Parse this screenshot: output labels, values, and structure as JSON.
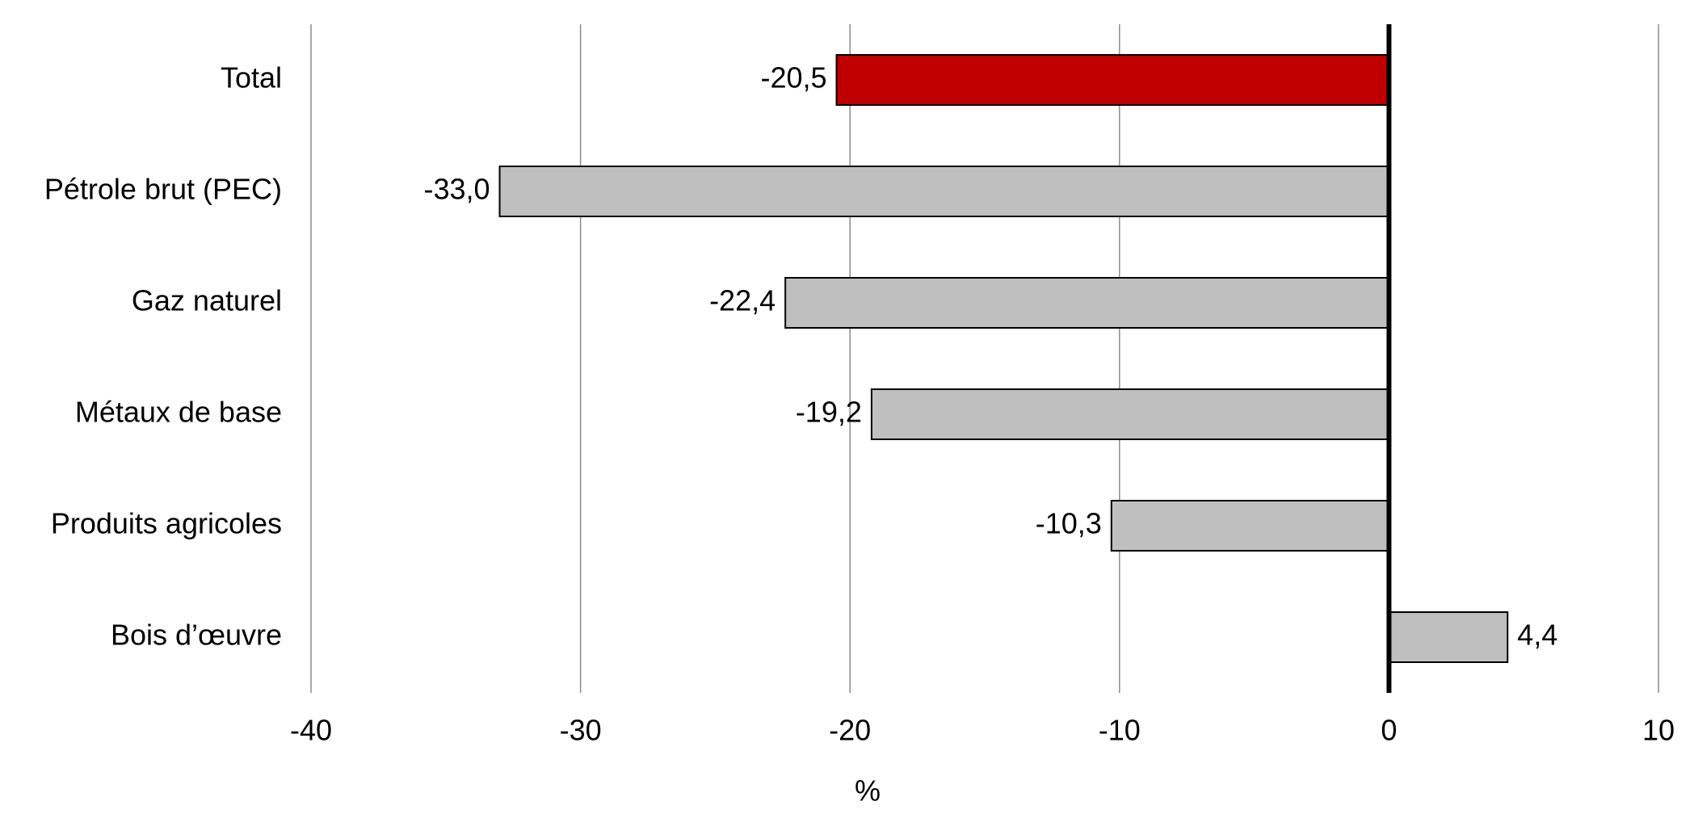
{
  "chart_data": {
    "type": "hbar",
    "categories": [
      "Total",
      "Pétrole brut (PEC)",
      "Gaz naturel",
      "Métaux de base",
      "Produits agricoles",
      "Bois d’œuvre"
    ],
    "values": [
      -20.5,
      -33.0,
      -22.4,
      -19.2,
      -10.3,
      4.4
    ],
    "value_labels": [
      "-20,5",
      "-33,0",
      "-22,4",
      "-19,2",
      "-10,3",
      "4,4"
    ],
    "colors": [
      "#c00000",
      "#bfbfbf",
      "#bfbfbf",
      "#bfbfbf",
      "#bfbfbf",
      "#bfbfbf"
    ],
    "xlabel": "%",
    "xlim": [
      -40,
      10
    ],
    "xticks": [
      -40,
      -30,
      -20,
      -10,
      0,
      10
    ],
    "grid": true
  }
}
